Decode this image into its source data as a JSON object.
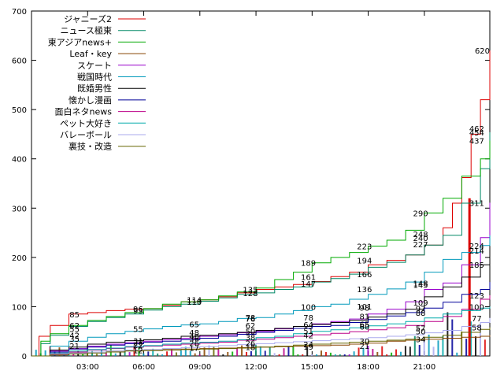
{
  "chart_data": {
    "type": "line",
    "title": "",
    "xlabel": "",
    "ylabel": "",
    "xlim": [
      0,
      24.5
    ],
    "ylim": [
      0,
      700
    ],
    "yticks": [
      0,
      100,
      200,
      300,
      400,
      500,
      600,
      700
    ],
    "xticks": [
      {
        "x": 3,
        "label": "03:00"
      },
      {
        "x": 6,
        "label": "06:00"
      },
      {
        "x": 9,
        "label": "09:00"
      },
      {
        "x": 12,
        "label": "12:00"
      },
      {
        "x": 15,
        "label": "15:00"
      },
      {
        "x": 18,
        "label": "18:00"
      },
      {
        "x": 21,
        "label": "21:00"
      }
    ],
    "grid": false,
    "legend_position": "top-left",
    "series": [
      {
        "name": "ジャニーズ2",
        "color": "#dd0000",
        "x": [
          0,
          0.4,
          1,
          2,
          3,
          4,
          5,
          6,
          7,
          8,
          9,
          10,
          11,
          12,
          13,
          14,
          15,
          16,
          17,
          18,
          19,
          20,
          21,
          22,
          22.5,
          23,
          23.5,
          24,
          24.5
        ],
        "y": [
          0,
          40,
          62,
          85,
          88,
          92,
          95,
          96,
          103,
          110,
          114,
          120,
          128,
          135,
          140,
          145,
          151,
          161,
          170,
          185,
          194,
          205,
          225,
          260,
          310,
          362,
          450,
          520,
          620
        ]
      },
      {
        "name": "ニュース極東",
        "color": "#008866",
        "x": [
          0,
          0.5,
          1,
          2,
          3,
          4,
          5,
          6,
          7,
          8,
          9,
          10,
          11,
          12,
          13,
          14,
          15,
          16,
          17,
          18,
          19,
          20,
          21,
          22,
          23,
          24,
          24.5
        ],
        "y": [
          0,
          25,
          42,
          60,
          70,
          78,
          85,
          93,
          100,
          105,
          111,
          118,
          125,
          128,
          135,
          140,
          150,
          157,
          166,
          180,
          190,
          205,
          225,
          245,
          310,
          380,
          454
        ]
      },
      {
        "name": "東アジアnews+",
        "color": "#00aa00",
        "x": [
          0,
          0.5,
          1,
          2,
          3,
          4,
          5,
          6,
          7,
          8,
          9,
          10,
          11,
          12,
          13,
          14,
          15,
          16,
          17,
          18,
          19,
          20,
          21,
          22,
          23,
          24,
          24.5
        ],
        "y": [
          0,
          30,
          45,
          62,
          72,
          80,
          88,
          96,
          105,
          110,
          114,
          122,
          130,
          138,
          155,
          170,
          189,
          200,
          210,
          223,
          235,
          255,
          290,
          320,
          365,
          400,
          437
        ]
      },
      {
        "name": "Leaf・key",
        "color": "#884400",
        "x": [
          0,
          1,
          2,
          3,
          4,
          5,
          6,
          7,
          8,
          9,
          10,
          11,
          12,
          13,
          14,
          15,
          16,
          17,
          18,
          19,
          20,
          21,
          22,
          23,
          24,
          24.5
        ],
        "y": [
          0,
          3,
          6,
          8,
          10,
          11,
          12,
          13,
          14,
          15,
          16,
          17,
          18,
          19,
          20,
          21,
          22,
          24,
          26,
          30,
          32,
          34,
          36,
          38,
          40,
          42
        ]
      },
      {
        "name": "スケート",
        "color": "#9900cc",
        "x": [
          0,
          1,
          2,
          3,
          4,
          5,
          6,
          7,
          8,
          9,
          10,
          11,
          12,
          13,
          14,
          15,
          16,
          17,
          18,
          19,
          20,
          21,
          22,
          23,
          24,
          24.5
        ],
        "y": [
          0,
          10,
          15,
          20,
          24,
          27,
          30,
          33,
          36,
          40,
          43,
          47,
          50,
          55,
          60,
          65,
          70,
          75,
          85,
          95,
          110,
          135,
          148,
          185,
          240,
          311
        ]
      },
      {
        "name": "戦国時代",
        "color": "#0099bb",
        "x": [
          0,
          1,
          2,
          3,
          4,
          5,
          6,
          7,
          8,
          9,
          10,
          11,
          12,
          13,
          14,
          15,
          16,
          17,
          18,
          19,
          20,
          21,
          22,
          23,
          24,
          24.5
        ],
        "y": [
          0,
          20,
          30,
          38,
          45,
          50,
          55,
          60,
          63,
          65,
          70,
          76,
          78,
          85,
          92,
          100,
          105,
          115,
          125,
          136,
          150,
          170,
          196,
          210,
          224,
          245
        ]
      },
      {
        "name": "既婚男性",
        "color": "#000000",
        "x": [
          0,
          1,
          2,
          3,
          4,
          5,
          6,
          7,
          8,
          9,
          10,
          11,
          12,
          13,
          14,
          15,
          16,
          17,
          18,
          19,
          20,
          21,
          22,
          23,
          24,
          24.5
        ],
        "y": [
          0,
          12,
          18,
          24,
          28,
          31,
          33,
          36,
          40,
          42,
          45,
          48,
          52,
          56,
          60,
          64,
          68,
          72,
          79,
          85,
          95,
          120,
          140,
          160,
          185,
          214
        ]
      },
      {
        "name": "懐かし漫画",
        "color": "#000099",
        "x": [
          0,
          1,
          2,
          3,
          4,
          5,
          6,
          7,
          8,
          9,
          10,
          11,
          12,
          13,
          14,
          15,
          16,
          17,
          18,
          19,
          20,
          21,
          22,
          23,
          24,
          24.5
        ],
        "y": [
          0,
          8,
          14,
          18,
          22,
          25,
          28,
          30,
          33,
          36,
          40,
          44,
          48,
          52,
          56,
          60,
          62,
          68,
          74,
          81,
          88,
          97,
          109,
          125,
          135,
          150
        ]
      },
      {
        "name": "面白ネタnews",
        "color": "#bb0088",
        "x": [
          0,
          1,
          2,
          3,
          4,
          5,
          6,
          7,
          8,
          9,
          10,
          11,
          12,
          13,
          14,
          15,
          16,
          17,
          18,
          19,
          20,
          21,
          22,
          23,
          24,
          24.5
        ],
        "y": [
          0,
          4,
          8,
          12,
          15,
          18,
          20,
          22,
          24,
          26,
          28,
          32,
          34,
          37,
          40,
          43,
          46,
          49,
          53,
          57,
          62,
          70,
          80,
          95,
          115,
          123
        ]
      },
      {
        "name": "ペット大好き",
        "color": "#00aaaa",
        "x": [
          0,
          1,
          2,
          3,
          4,
          5,
          6,
          7,
          8,
          9,
          10,
          11,
          12,
          13,
          14,
          15,
          16,
          17,
          18,
          19,
          20,
          21,
          22,
          23,
          24,
          24.5
        ],
        "y": [
          0,
          6,
          10,
          13,
          16,
          19,
          21,
          24,
          26,
          28,
          30,
          33,
          37,
          40,
          45,
          50,
          53,
          57,
          61,
          65,
          70,
          77,
          85,
          92,
          97,
          100
        ]
      },
      {
        "name": "バレーボール",
        "color": "#aaaaee",
        "x": [
          0,
          1,
          2,
          3,
          4,
          5,
          6,
          7,
          8,
          9,
          10,
          11,
          12,
          13,
          14,
          15,
          16,
          17,
          18,
          19,
          20,
          21,
          22,
          23,
          24,
          24.5
        ],
        "y": [
          0,
          3,
          6,
          8,
          10,
          12,
          13,
          15,
          17,
          19,
          21,
          23,
          25,
          27,
          29,
          31,
          33,
          35,
          37,
          40,
          43,
          47,
          52,
          60,
          68,
          77
        ]
      },
      {
        "name": "裏技・改造",
        "color": "#666600",
        "x": [
          0,
          1,
          2,
          3,
          4,
          5,
          6,
          7,
          8,
          9,
          10,
          11,
          12,
          13,
          14,
          15,
          16,
          17,
          18,
          19,
          20,
          21,
          22,
          23,
          24,
          24.5
        ],
        "y": [
          0,
          2,
          4,
          6,
          8,
          10,
          11,
          12,
          13,
          14,
          15,
          16,
          18,
          20,
          22,
          24,
          26,
          28,
          30,
          32,
          34,
          38,
          42,
          48,
          54,
          58
        ]
      }
    ],
    "annotations": [
      {
        "x": 2.3,
        "y": 85,
        "text": "85"
      },
      {
        "x": 2.3,
        "y": 62,
        "text": "62"
      },
      {
        "x": 2.3,
        "y": 55,
        "text": "55"
      },
      {
        "x": 2.3,
        "y": 42,
        "text": "42"
      },
      {
        "x": 2.3,
        "y": 35,
        "text": "35"
      },
      {
        "x": 2.3,
        "y": 21,
        "text": "21"
      },
      {
        "x": 5.7,
        "y": 96,
        "text": "96"
      },
      {
        "x": 5.7,
        "y": 93,
        "text": "93"
      },
      {
        "x": 5.7,
        "y": 55,
        "text": "55"
      },
      {
        "x": 5.7,
        "y": 31,
        "text": "31"
      },
      {
        "x": 5.7,
        "y": 28,
        "text": "28"
      },
      {
        "x": 5.7,
        "y": 22,
        "text": "22"
      },
      {
        "x": 5.7,
        "y": 12,
        "text": "12"
      },
      {
        "x": 8.7,
        "y": 114,
        "text": "114"
      },
      {
        "x": 8.7,
        "y": 110,
        "text": "110"
      },
      {
        "x": 8.7,
        "y": 65,
        "text": "65"
      },
      {
        "x": 8.7,
        "y": 48,
        "text": "48"
      },
      {
        "x": 8.7,
        "y": 40,
        "text": "40"
      },
      {
        "x": 8.7,
        "y": 36,
        "text": "36"
      },
      {
        "x": 8.7,
        "y": 26,
        "text": "26"
      },
      {
        "x": 8.7,
        "y": 17,
        "text": "17"
      },
      {
        "x": 11.7,
        "y": 135,
        "text": "135"
      },
      {
        "x": 11.7,
        "y": 128,
        "text": "128"
      },
      {
        "x": 11.7,
        "y": 78,
        "text": "78"
      },
      {
        "x": 11.7,
        "y": 76,
        "text": "76"
      },
      {
        "x": 11.7,
        "y": 62,
        "text": "62"
      },
      {
        "x": 11.7,
        "y": 50,
        "text": "50"
      },
      {
        "x": 11.7,
        "y": 38,
        "text": "38"
      },
      {
        "x": 11.7,
        "y": 26,
        "text": "26"
      },
      {
        "x": 11.7,
        "y": 18,
        "text": "18"
      },
      {
        "x": 14.8,
        "y": 189,
        "text": "189"
      },
      {
        "x": 14.8,
        "y": 161,
        "text": "161"
      },
      {
        "x": 14.8,
        "y": 147,
        "text": "147"
      },
      {
        "x": 14.8,
        "y": 100,
        "text": "100"
      },
      {
        "x": 14.8,
        "y": 78,
        "text": "78"
      },
      {
        "x": 14.8,
        "y": 64,
        "text": "64"
      },
      {
        "x": 14.8,
        "y": 51,
        "text": "51"
      },
      {
        "x": 14.8,
        "y": 42,
        "text": "42"
      },
      {
        "x": 14.8,
        "y": 24,
        "text": "24"
      },
      {
        "x": 14.8,
        "y": 19,
        "text": "19"
      },
      {
        "x": 17.8,
        "y": 223,
        "text": "223"
      },
      {
        "x": 17.8,
        "y": 194,
        "text": "194"
      },
      {
        "x": 17.8,
        "y": 166,
        "text": "166"
      },
      {
        "x": 17.8,
        "y": 136,
        "text": "136"
      },
      {
        "x": 17.8,
        "y": 101,
        "text": "101"
      },
      {
        "x": 17.8,
        "y": 98,
        "text": "98"
      },
      {
        "x": 17.8,
        "y": 81,
        "text": "81"
      },
      {
        "x": 17.8,
        "y": 65,
        "text": "65"
      },
      {
        "x": 17.8,
        "y": 60,
        "text": "60"
      },
      {
        "x": 17.8,
        "y": 30,
        "text": "30"
      },
      {
        "x": 17.8,
        "y": 21,
        "text": "21"
      },
      {
        "x": 20.8,
        "y": 290,
        "text": "290"
      },
      {
        "x": 20.8,
        "y": 248,
        "text": "248"
      },
      {
        "x": 20.8,
        "y": 240,
        "text": "240"
      },
      {
        "x": 20.8,
        "y": 227,
        "text": "227"
      },
      {
        "x": 20.8,
        "y": 148,
        "text": "148"
      },
      {
        "x": 20.8,
        "y": 145,
        "text": "145"
      },
      {
        "x": 20.8,
        "y": 109,
        "text": "109"
      },
      {
        "x": 20.8,
        "y": 97,
        "text": "97"
      },
      {
        "x": 20.8,
        "y": 88,
        "text": "88"
      },
      {
        "x": 20.8,
        "y": 57,
        "text": "57"
      },
      {
        "x": 20.8,
        "y": 50,
        "text": "50"
      },
      {
        "x": 20.8,
        "y": 34,
        "text": "34"
      },
      {
        "x": 24.1,
        "y": 620,
        "text": "620"
      },
      {
        "x": 23.8,
        "y": 462,
        "text": "462"
      },
      {
        "x": 23.8,
        "y": 454,
        "text": "454"
      },
      {
        "x": 23.8,
        "y": 437,
        "text": "437"
      },
      {
        "x": 23.8,
        "y": 311,
        "text": "311"
      },
      {
        "x": 23.8,
        "y": 224,
        "text": "224"
      },
      {
        "x": 23.8,
        "y": 214,
        "text": "214"
      },
      {
        "x": 23.8,
        "y": 185,
        "text": "185"
      },
      {
        "x": 23.8,
        "y": 123,
        "text": "123"
      },
      {
        "x": 23.8,
        "y": 100,
        "text": "100"
      },
      {
        "x": 23.8,
        "y": 77,
        "text": "77"
      },
      {
        "x": 23.8,
        "y": 58,
        "text": "58"
      }
    ]
  }
}
